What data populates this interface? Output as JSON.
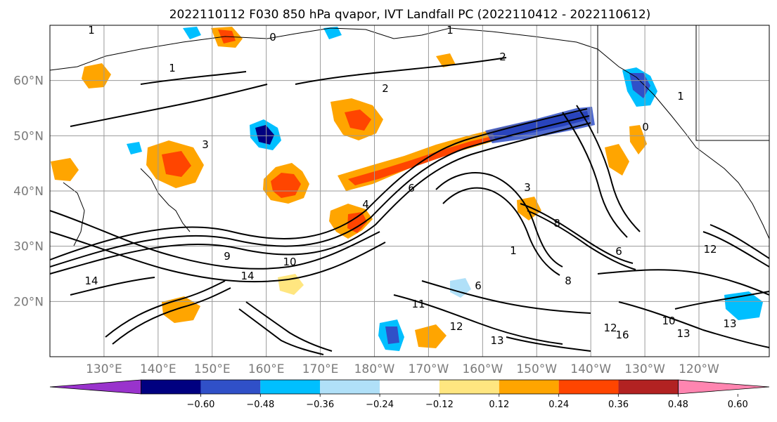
{
  "title": "2022110112 F030 850 hPa qvapor, IVT Landfall PC (2022110412 - 2022110612)",
  "map": {
    "lat_labels": [
      "60°N",
      "50°N",
      "40°N",
      "30°N",
      "20°N"
    ],
    "lat_values": [
      60,
      50,
      40,
      30,
      20
    ],
    "lon_labels": [
      "130°E",
      "140°E",
      "150°E",
      "160°E",
      "170°E",
      "180°W",
      "170°W",
      "160°W",
      "150°W",
      "140°W",
      "130°W",
      "120°W"
    ],
    "lon_values_east": [
      130,
      140,
      150,
      160,
      170,
      180,
      190,
      200,
      210,
      220,
      230,
      240
    ],
    "extent": {
      "lon_east_min": 120,
      "lon_east_max": 253,
      "lat_min": 10,
      "lat_max": 70
    },
    "contour_labels": [
      "1",
      "1",
      "1",
      "1",
      "1",
      "2",
      "2",
      "3",
      "3",
      "4",
      "6",
      "6",
      "6",
      "8",
      "8",
      "9",
      "10",
      "10",
      "11",
      "12",
      "12",
      "12",
      "13",
      "13",
      "13",
      "14",
      "14",
      "16",
      "0",
      "0"
    ]
  },
  "colorbar": {
    "tick_labels": [
      "−0.60",
      "−0.48",
      "−0.36",
      "−0.24",
      "−0.12",
      "0.12",
      "0.24",
      "0.36",
      "0.48",
      "0.60"
    ],
    "tick_values": [
      -0.6,
      -0.48,
      -0.36,
      -0.24,
      -0.12,
      0.12,
      0.24,
      0.36,
      0.48,
      0.6
    ],
    "colors": {
      "under": "#9933cc",
      "bins": [
        "#9933cc",
        "#000080",
        "#3050c8",
        "#00bfff",
        "#b0e0f8",
        "#ffffff",
        "#ffe680",
        "#ffa500",
        "#ff4500",
        "#b22222",
        "#ff85b0"
      ],
      "over": "#ff85b0"
    }
  },
  "chart_data": {
    "type": "heatmap",
    "title": "2022110112 F030 850 hPa qvapor, IVT Landfall PC (2022110412 - 2022110612)",
    "value_levels": [
      -0.6,
      -0.48,
      -0.36,
      -0.24,
      -0.12,
      0.12,
      0.24,
      0.36,
      0.48,
      0.6
    ],
    "lat_range": [
      10,
      70
    ],
    "lon_range_east": [
      120,
      253
    ],
    "grid": true
  }
}
